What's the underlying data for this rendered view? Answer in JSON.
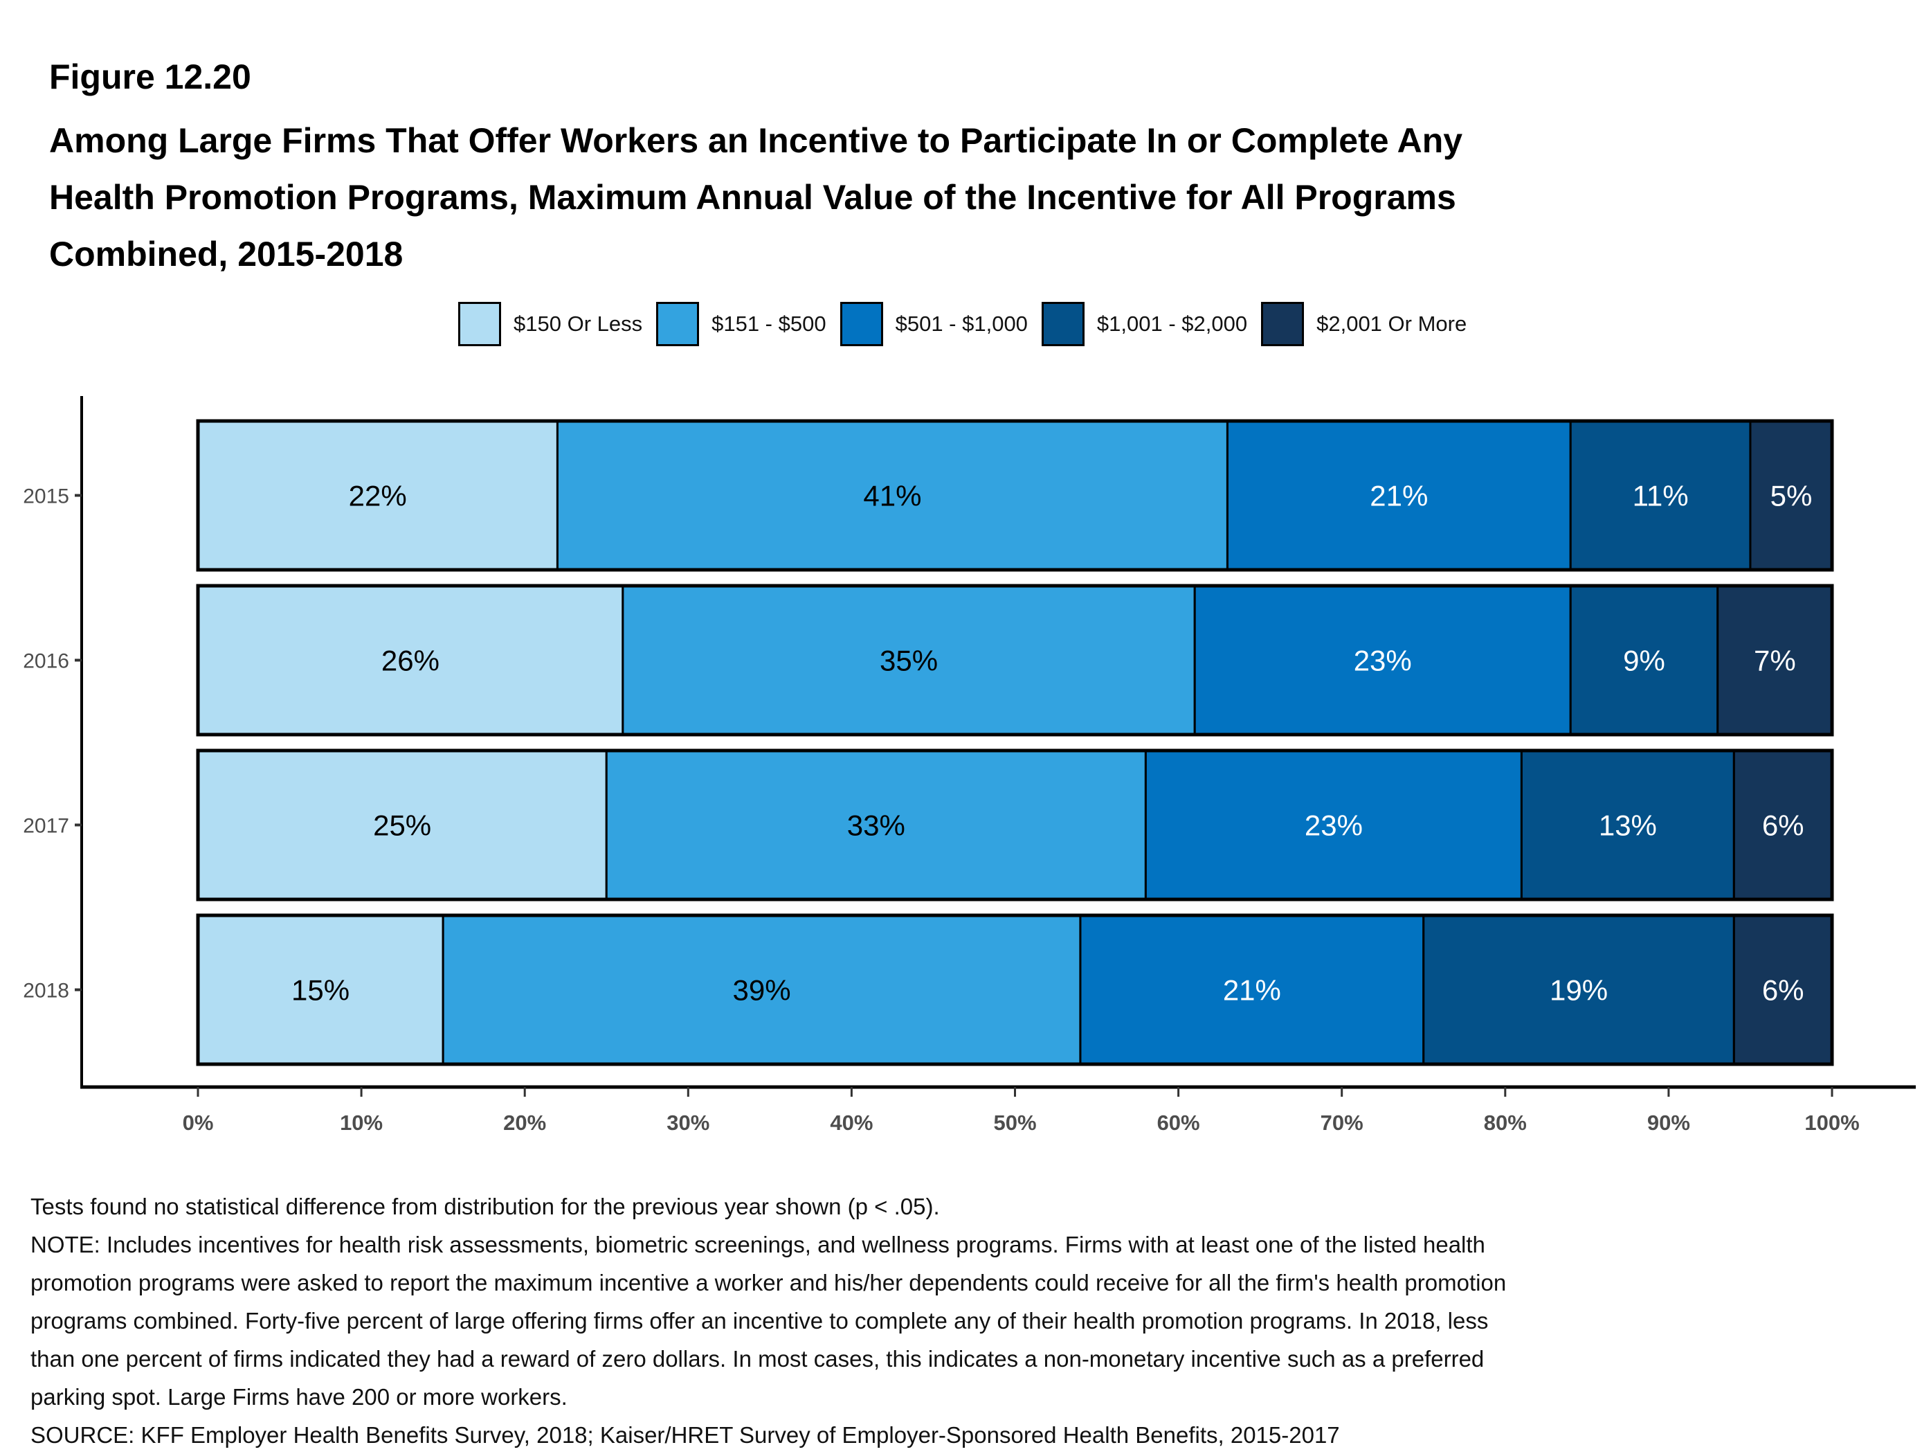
{
  "header": {
    "figure_label": "Figure 12.20",
    "title_lines": [
      "Among Large Firms That Offer Workers an Incentive to Participate In or Complete Any",
      "Health Promotion Programs, Maximum Annual Value of the Incentive for All Programs",
      "Combined, 2015-2018"
    ]
  },
  "chart_data": {
    "type": "bar",
    "orientation": "horizontal",
    "stacked": true,
    "title": "Among Large Firms That Offer Workers an Incentive to Participate In or Complete Any Health Promotion Programs, Maximum Annual Value of the Incentive for All Programs Combined, 2015-2018",
    "categories": [
      "2015",
      "2016",
      "2017",
      "2018"
    ],
    "series": [
      {
        "name": "$150 Or Less",
        "color": "#b1ddf3",
        "label_color": "#000000",
        "values": [
          22,
          26,
          25,
          15
        ]
      },
      {
        "name": "$151 - $500",
        "color": "#33a3e0",
        "label_color": "#000000",
        "values": [
          41,
          35,
          33,
          39
        ]
      },
      {
        "name": "$501 - $1,000",
        "color": "#0273c1",
        "label_color": "#ffffff",
        "values": [
          21,
          23,
          23,
          21
        ]
      },
      {
        "name": "$1,001 - $2,000",
        "color": "#045189",
        "label_color": "#ffffff",
        "values": [
          11,
          9,
          13,
          19
        ]
      },
      {
        "name": "$2,001 Or More",
        "color": "#15365a",
        "label_color": "#ffffff",
        "values": [
          5,
          7,
          6,
          6
        ]
      }
    ],
    "xlabel": "",
    "ylabel": "",
    "xlim": [
      0,
      100
    ],
    "x_ticks": [
      "0%",
      "10%",
      "20%",
      "30%",
      "40%",
      "50%",
      "60%",
      "70%",
      "80%",
      "90%",
      "100%"
    ],
    "grid": false,
    "legend_position": "top",
    "value_suffix": "%"
  },
  "notes": [
    "Tests found no statistical difference from distribution for the previous year shown (p < .05).",
    "NOTE: Includes incentives for health risk assessments, biometric screenings, and wellness programs. Firms with at least one of the listed health",
    "promotion programs were asked to report the maximum incentive a worker and his/her dependents could receive for all the firm's health promotion",
    "programs combined. Forty-five percent of large offering firms offer an incentive to complete any of their health promotion programs. In 2018, less",
    "than one percent of firms indicated they had a reward of zero dollars. In most cases, this indicates a non-monetary incentive such as a preferred",
    "parking spot. Large Firms have 200 or more workers.",
    "SOURCE: KFF Employer Health Benefits Survey, 2018; Kaiser/HRET Survey of Employer-Sponsored Health Benefits, 2015-2017"
  ]
}
